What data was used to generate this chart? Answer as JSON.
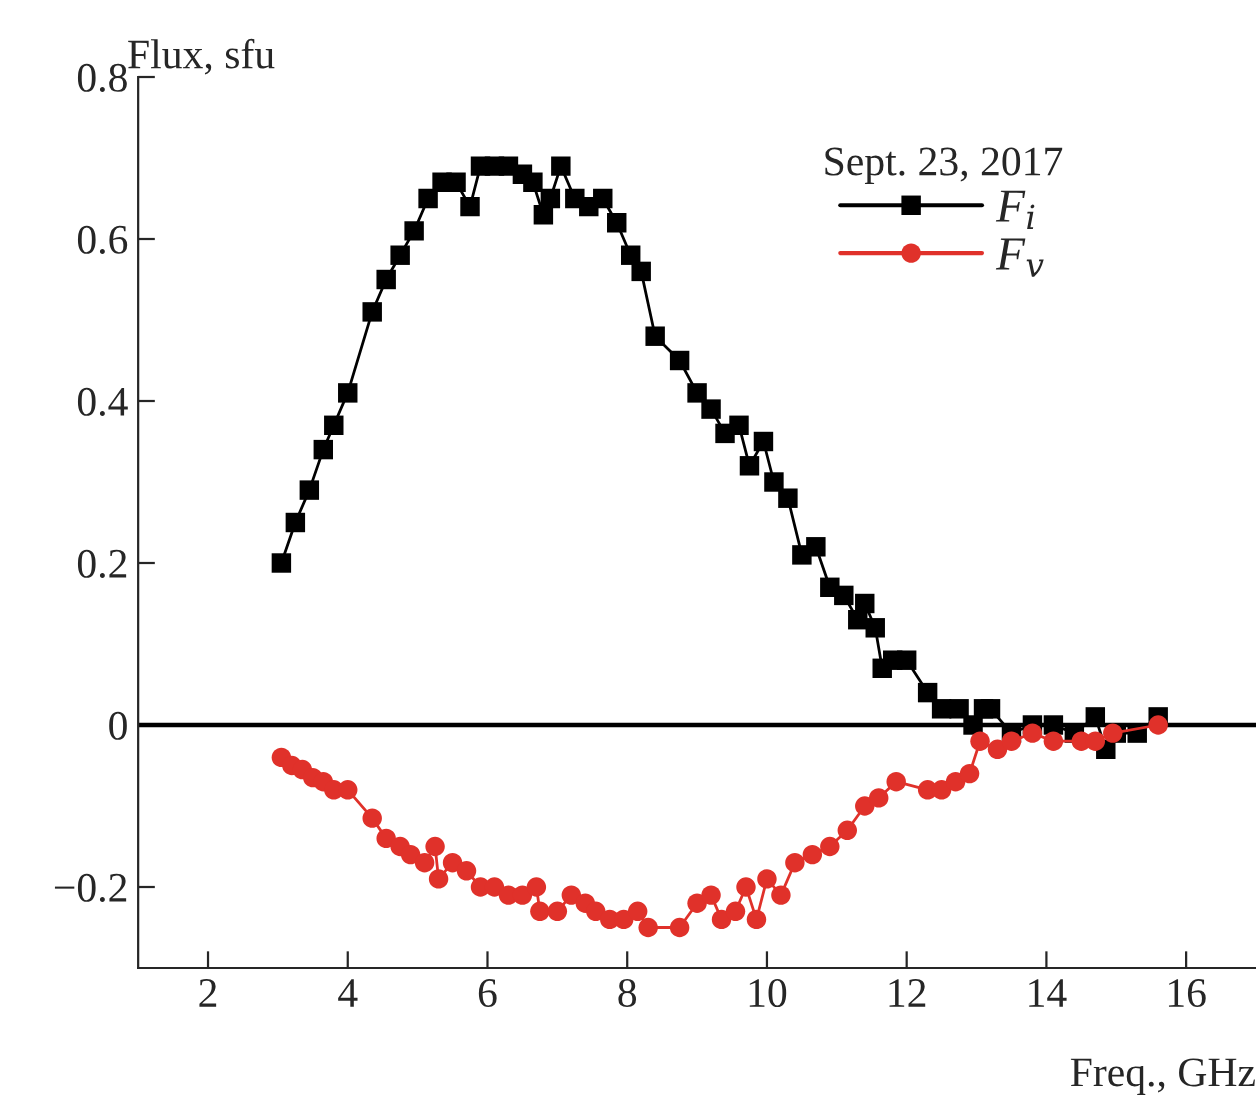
{
  "chart_data": {
    "type": "line",
    "xlabel": "Freq., GHz",
    "ylabel": "Flux, sfu",
    "legend_title": "Sept. 23, 2017",
    "legend": "top",
    "xlim": [
      1,
      17
    ],
    "ylim": [
      -0.3,
      0.8
    ],
    "xticks": [
      2,
      4,
      6,
      8,
      10,
      12,
      14,
      16
    ],
    "yticks": [
      -0.2,
      0,
      0.2,
      0.4,
      0.6,
      0.8
    ],
    "grid": false,
    "ref_lines": [
      {
        "axis": "y",
        "value": 0,
        "color": "#000000"
      }
    ],
    "series": [
      {
        "name": "F$_{i}$",
        "color": "#000000",
        "marker": "square",
        "x": [
          3.05,
          3.25,
          3.45,
          3.65,
          3.8,
          4.0,
          4.35,
          4.55,
          4.75,
          4.95,
          5.15,
          5.35,
          5.55,
          5.75,
          5.9,
          6.1,
          6.3,
          6.5,
          6.65,
          6.8,
          6.9,
          7.05,
          7.25,
          7.45,
          7.65,
          7.85,
          8.05,
          8.2,
          8.4,
          8.75,
          9.0,
          9.2,
          9.4,
          9.6,
          9.75,
          9.95,
          10.1,
          10.3,
          10.5,
          10.7,
          10.9,
          11.1,
          11.3,
          11.4,
          11.55,
          11.65,
          11.8,
          12.0,
          12.3,
          12.5,
          12.75,
          12.95,
          13.1,
          13.2,
          13.5,
          13.8,
          14.1,
          14.4,
          14.7,
          14.85,
          15.0,
          15.3,
          15.6
        ],
        "values": [
          0.2,
          0.25,
          0.29,
          0.34,
          0.37,
          0.41,
          0.51,
          0.55,
          0.58,
          0.61,
          0.65,
          0.67,
          0.67,
          0.64,
          0.69,
          0.69,
          0.69,
          0.68,
          0.67,
          0.63,
          0.65,
          0.69,
          0.65,
          0.64,
          0.65,
          0.62,
          0.58,
          0.56,
          0.48,
          0.45,
          0.41,
          0.39,
          0.36,
          0.37,
          0.32,
          0.35,
          0.3,
          0.28,
          0.21,
          0.22,
          0.17,
          0.16,
          0.13,
          0.15,
          0.12,
          0.07,
          0.08,
          0.08,
          0.04,
          0.02,
          0.02,
          0.0,
          0.02,
          0.02,
          -0.01,
          0.0,
          0.0,
          -0.01,
          0.01,
          -0.03,
          -0.01,
          -0.01,
          0.01
        ]
      },
      {
        "name": "F$_{v}$",
        "color": "#e0312a",
        "marker": "circle",
        "x": [
          3.05,
          3.2,
          3.35,
          3.5,
          3.65,
          3.8,
          4.0,
          4.35,
          4.55,
          4.75,
          4.9,
          5.1,
          5.25,
          5.3,
          5.5,
          5.7,
          5.9,
          6.1,
          6.3,
          6.5,
          6.7,
          6.75,
          7.0,
          7.2,
          7.4,
          7.55,
          7.75,
          7.95,
          8.15,
          8.3,
          8.75,
          9.0,
          9.2,
          9.35,
          9.55,
          9.7,
          9.85,
          10.0,
          10.2,
          10.4,
          10.65,
          10.9,
          11.15,
          11.4,
          11.6,
          11.85,
          12.3,
          12.5,
          12.7,
          12.9,
          13.05,
          13.3,
          13.5,
          13.8,
          14.1,
          14.5,
          14.7,
          14.95,
          15.6
        ],
        "values": [
          -0.04,
          -0.05,
          -0.055,
          -0.065,
          -0.07,
          -0.08,
          -0.08,
          -0.115,
          -0.14,
          -0.15,
          -0.16,
          -0.17,
          -0.15,
          -0.19,
          -0.17,
          -0.18,
          -0.2,
          -0.2,
          -0.21,
          -0.21,
          -0.2,
          -0.23,
          -0.23,
          -0.21,
          -0.22,
          -0.23,
          -0.24,
          -0.24,
          -0.23,
          -0.25,
          -0.25,
          -0.22,
          -0.21,
          -0.24,
          -0.23,
          -0.2,
          -0.24,
          -0.19,
          -0.21,
          -0.17,
          -0.16,
          -0.15,
          -0.13,
          -0.1,
          -0.09,
          -0.07,
          -0.08,
          -0.08,
          -0.07,
          -0.06,
          -0.02,
          -0.03,
          -0.02,
          -0.01,
          -0.02,
          -0.02,
          -0.02,
          -0.01,
          0.0
        ]
      }
    ]
  }
}
